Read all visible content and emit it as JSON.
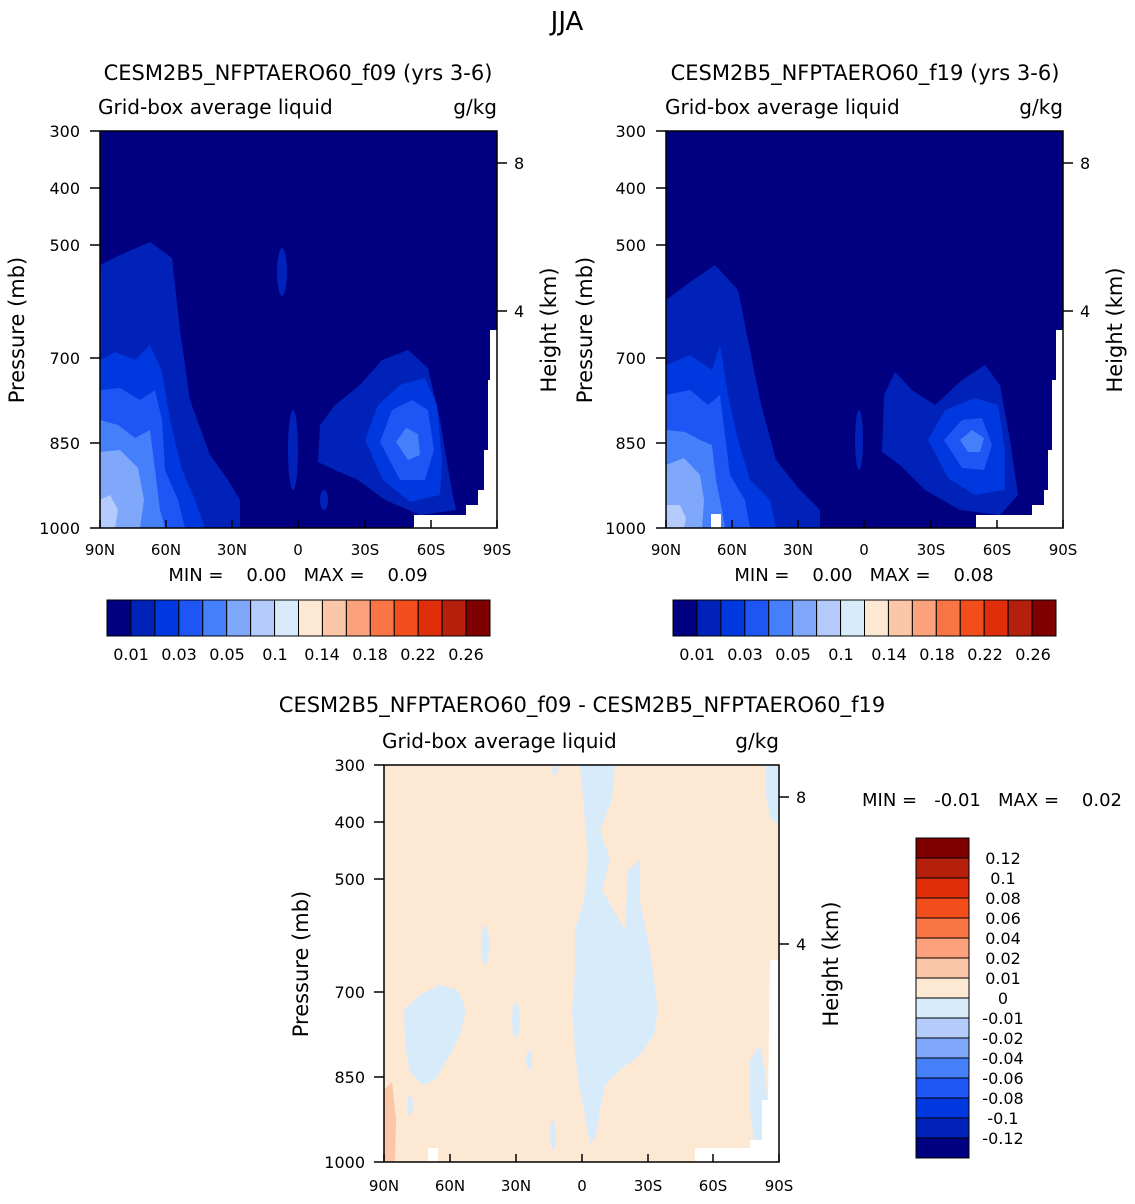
{
  "season": "JJA",
  "colors": {
    "seq": [
      "#000080",
      "#0022b8",
      "#0038e0",
      "#1e55f5",
      "#4580fa",
      "#7fa8fb",
      "#b4cbfb",
      "#d8ebfa",
      "#fde8d4",
      "#fcc6a8",
      "#fba27c",
      "#f97545",
      "#f24e1c",
      "#e02e0b",
      "#b5200c",
      "#7f0000"
    ],
    "diff": [
      "#000080",
      "#0022b8",
      "#0038e0",
      "#1e55f5",
      "#4580fa",
      "#7fa8fb",
      "#b4cbfb",
      "#d8ebfa",
      "#fde8d4",
      "#fcc6a8",
      "#fba27c",
      "#f97545",
      "#f24e1c",
      "#e02e0b",
      "#b5200c",
      "#7f0000"
    ]
  },
  "panel1": {
    "title": "CESM2B5_NFPTAERO60_f09 (yrs 3-6)",
    "subtitle_left": "Grid-box average liquid",
    "subtitle_right": "g/kg",
    "minmax": "MIN =    0.00   MAX =    0.09",
    "colorbar_labels": [
      "0.01",
      "0.03",
      "0.05",
      "0.1",
      "0.14",
      "0.18",
      "0.22",
      "0.26"
    ]
  },
  "panel2": {
    "title": "CESM2B5_NFPTAERO60_f19 (yrs 3-6)",
    "subtitle_left": "Grid-box average liquid",
    "subtitle_right": "g/kg",
    "minmax": "MIN =    0.00   MAX =    0.08",
    "colorbar_labels": [
      "0.01",
      "0.03",
      "0.05",
      "0.1",
      "0.14",
      "0.18",
      "0.22",
      "0.26"
    ]
  },
  "panel3": {
    "title": "CESM2B5_NFPTAERO60_f09 - CESM2B5_NFPTAERO60_f19",
    "subtitle_left": "Grid-box average liquid",
    "subtitle_right": "g/kg",
    "minmax": "MIN =   -0.01   MAX =    0.02",
    "colorbar_labels": [
      "0.12",
      "0.1",
      "0.08",
      "0.06",
      "0.04",
      "0.02",
      "0.01",
      "0",
      "-0.01",
      "-0.02",
      "-0.04",
      "-0.06",
      "-0.08",
      "-0.1",
      "-0.12"
    ]
  },
  "axes": {
    "ylabel_left": "Pressure (mb)",
    "ylabel_right": "Height (km)",
    "y_ticks": [
      "300",
      "400",
      "500",
      "700",
      "850",
      "1000"
    ],
    "y_right_ticks": [
      "8",
      "4"
    ],
    "x_ticks": [
      "90N",
      "60N",
      "30N",
      "0",
      "30S",
      "60S",
      "90S"
    ]
  },
  "chart_data": [
    {
      "type": "heatmap",
      "title": "CESM2B5_NFPTAERO60_f09 (yrs 3-6)",
      "variable": "Grid-box average liquid",
      "units": "g/kg",
      "xlabel": "",
      "ylabel": "Pressure (mb)",
      "ylabel_right": "Height (km)",
      "x": [
        "90N",
        "60N",
        "30N",
        "0",
        "30S",
        "60S",
        "90S"
      ],
      "y_pressure": [
        300,
        400,
        500,
        700,
        850,
        1000
      ],
      "min": 0.0,
      "max": 0.09
    },
    {
      "type": "heatmap",
      "title": "CESM2B5_NFPTAERO60_f19 (yrs 3-6)",
      "variable": "Grid-box average liquid",
      "units": "g/kg",
      "ylabel": "Pressure (mb)",
      "ylabel_right": "Height (km)",
      "x": [
        "90N",
        "60N",
        "30N",
        "0",
        "30S",
        "60S",
        "90S"
      ],
      "y_pressure": [
        300,
        400,
        500,
        700,
        850,
        1000
      ],
      "min": 0.0,
      "max": 0.08
    },
    {
      "type": "heatmap",
      "title": "CESM2B5_NFPTAERO60_f09 - CESM2B5_NFPTAERO60_f19",
      "variable": "Grid-box average liquid",
      "units": "g/kg",
      "ylabel": "Pressure (mb)",
      "ylabel_right": "Height (km)",
      "x": [
        "90N",
        "60N",
        "30N",
        "0",
        "30S",
        "60S",
        "90S"
      ],
      "y_pressure": [
        300,
        400,
        500,
        700,
        850,
        1000
      ],
      "min": -0.01,
      "max": 0.02
    }
  ]
}
